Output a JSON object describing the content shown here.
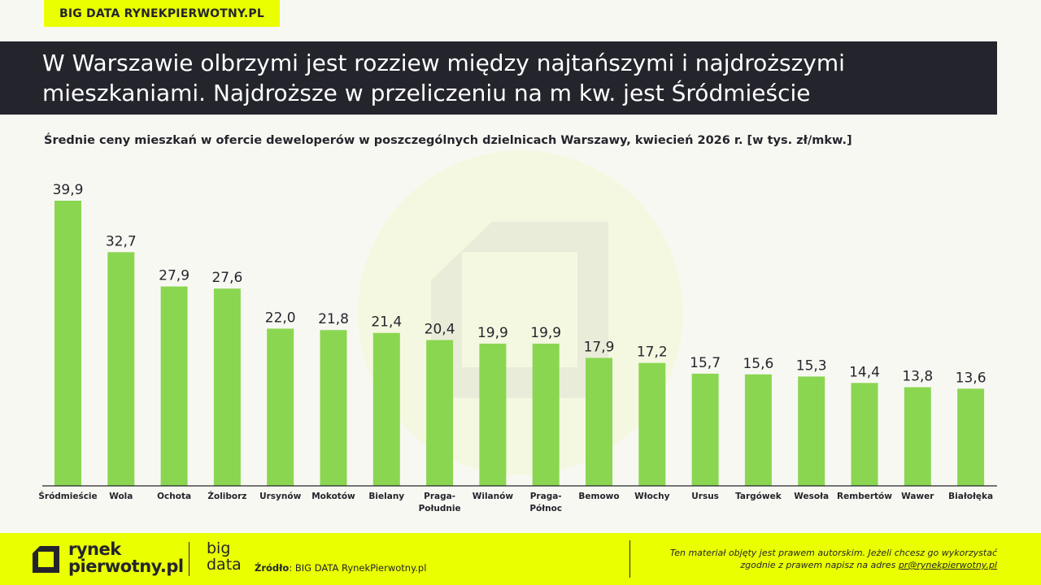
{
  "header": {
    "tag": "BIG DATA RYNEKPIERWOTNY.PL",
    "title": "W Warszawie olbrzymi jest rozziew między najtańszymi i najdroższymi mieszkaniami. Najdroższe w przeliczeniu na m kw. jest Śródmieście",
    "subtitle": "Średnie ceny mieszkań w ofercie deweloperów w poszczególnych dzielnicach Warszawy, kwiecień 2026 r. [w tys. zł/mkw.]"
  },
  "chart_data": {
    "type": "bar",
    "title": "Średnie ceny mieszkań w ofercie deweloperów w poszczególnych dzielnicach Warszawy, kwiecień 2026 r. [w tys. zł/mkw.]",
    "categories": [
      "Śródmieście",
      "Wola",
      "Ochota",
      "Żoliborz",
      "Ursynów",
      "Mokotów",
      "Bielany",
      "Praga-\nPołudnie",
      "Wilanów",
      "Praga-\nPółnoc",
      "Bemowo",
      "Włochy",
      "Ursus",
      "Targówek",
      "Wesoła",
      "Rembertów",
      "Wawer",
      "Białołęka"
    ],
    "values": [
      39.9,
      32.7,
      27.9,
      27.6,
      22.0,
      21.8,
      21.4,
      20.4,
      19.9,
      19.9,
      17.9,
      17.2,
      15.7,
      15.6,
      15.3,
      14.4,
      13.8,
      13.6
    ],
    "value_labels": [
      "39,9",
      "32,7",
      "27,9",
      "27,6",
      "22,0",
      "21,8",
      "21,4",
      "20,4",
      "19,9",
      "19,9",
      "17,9",
      "17,2",
      "15,7",
      "15,6",
      "15,3",
      "14,4",
      "13,8",
      "13,6"
    ],
    "ylim": [
      0,
      40
    ],
    "grid": false,
    "bar_color": "#8ad651",
    "xlabel": "",
    "ylabel": ""
  },
  "footer": {
    "logo_line1": "rynek",
    "logo_line2": "pierwotny.pl",
    "bigdata_line1": "big",
    "bigdata_line2": "data",
    "source_label": "Źródło",
    "source_text": ": BIG DATA RynekPierwotny.pl",
    "copyright_line1": "Ten materiał objęty jest prawem autorskim. Jeżeli chcesz go wykorzystać",
    "copyright_line2": "zgodnie z prawem napisz na adres ",
    "copyright_email": "pr@rynekpierwotny.pl"
  },
  "colors": {
    "accent": "#eaff00",
    "dark": "#24252c",
    "bar": "#8ad651"
  }
}
